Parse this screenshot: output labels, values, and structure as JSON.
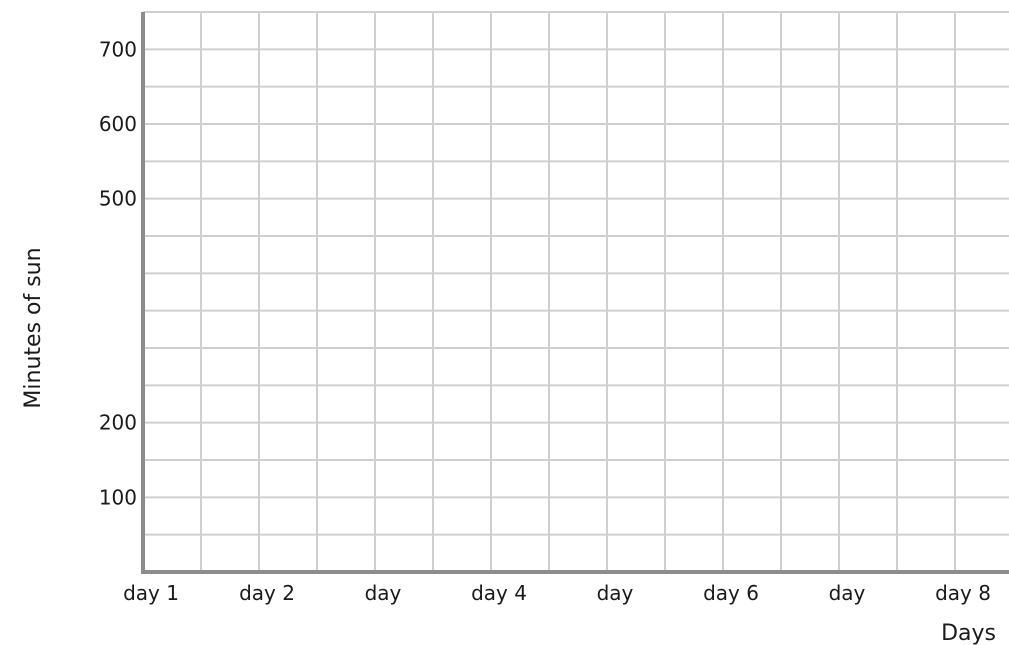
{
  "chart_data": {
    "type": "bar",
    "title": "",
    "xlabel": "Days",
    "ylabel": "Minutes of sun",
    "categories": [
      "day 1",
      "day 2",
      "day",
      "day 4",
      "day",
      "day 6",
      "day",
      "day 8"
    ],
    "yticks": [
      100,
      200,
      500,
      600,
      700
    ],
    "ylim": [
      0,
      700
    ],
    "grid": true,
    "series": [],
    "colors": {
      "grid": "#cfcfcf",
      "axis": "#8c8c8c",
      "text": "#1a1a1a"
    }
  }
}
